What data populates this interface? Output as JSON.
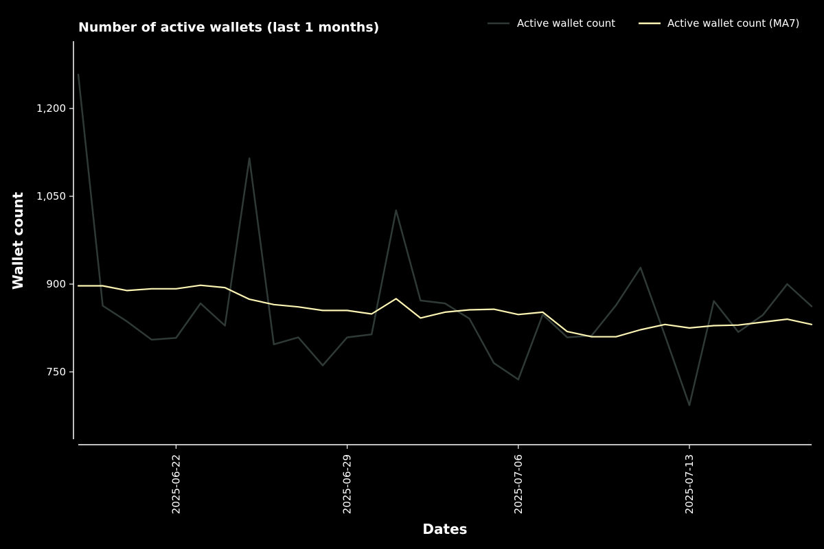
{
  "chart_data": {
    "type": "line",
    "title": "Number of active wallets (last 1 months)",
    "xlabel": "Dates",
    "ylabel": "Wallet count",
    "x": [
      "2025-06-18",
      "2025-06-19",
      "2025-06-20",
      "2025-06-21",
      "2025-06-22",
      "2025-06-23",
      "2025-06-24",
      "2025-06-25",
      "2025-06-26",
      "2025-06-27",
      "2025-06-28",
      "2025-06-29",
      "2025-06-30",
      "2025-07-01",
      "2025-07-02",
      "2025-07-03",
      "2025-07-04",
      "2025-07-05",
      "2025-07-06",
      "2025-07-07",
      "2025-07-08",
      "2025-07-09",
      "2025-07-10",
      "2025-07-11",
      "2025-07-12",
      "2025-07-13",
      "2025-07-14",
      "2025-07-15",
      "2025-07-16",
      "2025-07-17",
      "2025-07-18"
    ],
    "x_ticks": [
      "2025-06-22",
      "2025-06-29",
      "2025-07-06",
      "2025-07-13"
    ],
    "y_ticks": [
      {
        "value": 750,
        "label": "750"
      },
      {
        "value": 900,
        "label": "900"
      },
      {
        "value": 1050,
        "label": "1,050"
      },
      {
        "value": 1200,
        "label": "1,200"
      }
    ],
    "ylim": [
      635,
      1315
    ],
    "grid": false,
    "legend_position": "top-right",
    "series": [
      {
        "name": "Active wallet count",
        "color": "#2f3a36",
        "values": [
          1258,
          863,
          836,
          805,
          808,
          867,
          829,
          1115,
          797,
          809,
          761,
          809,
          814,
          1026,
          872,
          867,
          841,
          765,
          737,
          848,
          809,
          812,
          864,
          928,
          812,
          693,
          871,
          818,
          847,
          900,
          862
        ]
      },
      {
        "name": "Active wallet count (MA7)",
        "color": "#fdf5b4",
        "values": [
          897,
          897,
          889,
          892,
          892,
          898,
          894,
          874,
          865,
          861,
          855,
          855,
          849,
          875,
          842,
          852,
          856,
          857,
          848,
          852,
          819,
          810,
          810,
          822,
          831,
          825,
          829,
          830,
          835,
          840,
          831
        ]
      }
    ]
  }
}
